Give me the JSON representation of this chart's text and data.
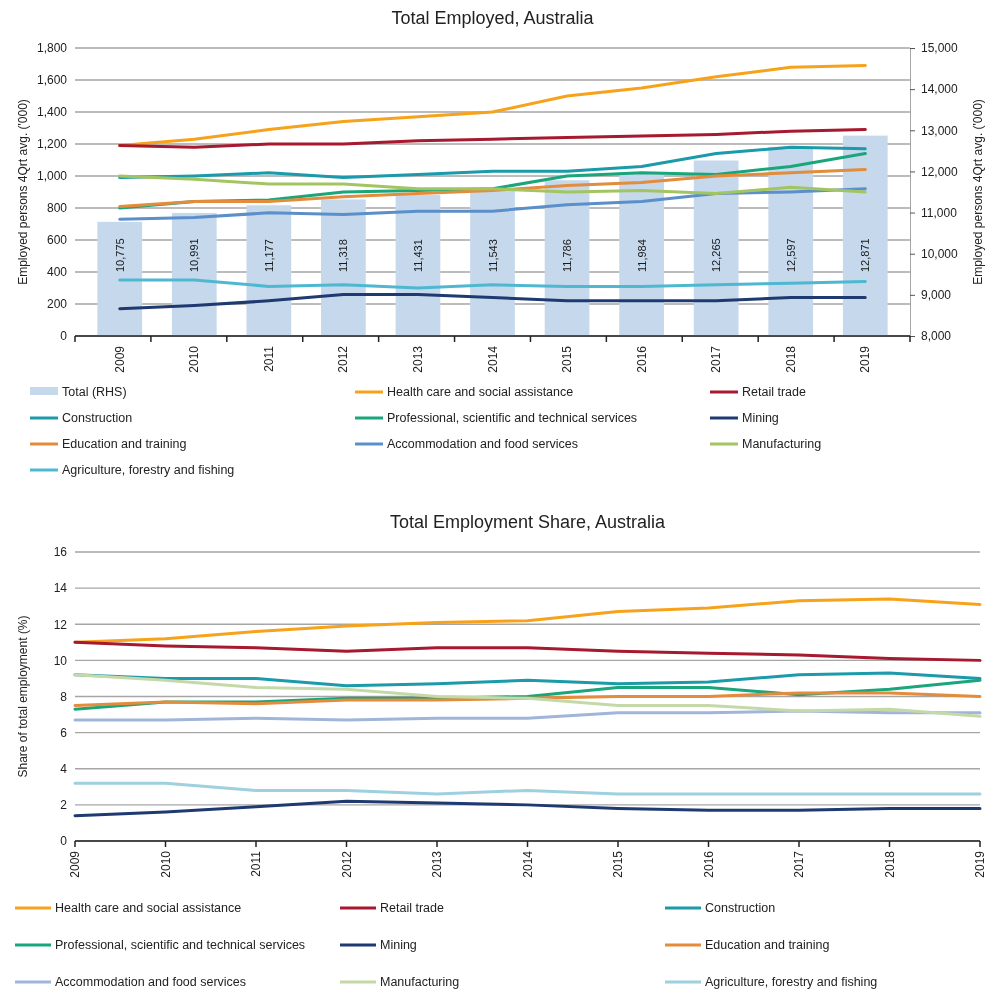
{
  "chart_data": [
    {
      "type": "line",
      "title": "Total Employed, Australia",
      "ylabel": "Employed persons 4Qrt avg. ('000)",
      "y2label": "Employed persons 4Qrt avg. ('000)",
      "categories": [
        "2009",
        "2010",
        "2011",
        "2012",
        "2013",
        "2014",
        "2015",
        "2016",
        "2017",
        "2018",
        "2019"
      ],
      "ylim": [
        0,
        1800
      ],
      "yticks": [
        0,
        200,
        400,
        600,
        800,
        {
          "value": 1000,
          "label": "1,000"
        },
        {
          "value": 1200,
          "label": "1,200"
        },
        {
          "value": 1400,
          "label": "1,400"
        },
        {
          "value": 1600,
          "label": "1,600"
        },
        {
          "value": 1800,
          "label": "1,800"
        }
      ],
      "y2lim": [
        8000,
        15000
      ],
      "y2ticks": [
        {
          "value": 8000,
          "label": "8,000"
        },
        {
          "value": 9000,
          "label": "9,000"
        },
        {
          "value": 10000,
          "label": "10,000"
        },
        {
          "value": 11000,
          "label": "11,000"
        },
        {
          "value": 12000,
          "label": "12,000"
        },
        {
          "value": 13000,
          "label": "13,000"
        },
        {
          "value": 14000,
          "label": "14,000"
        },
        {
          "value": 15000,
          "label": "15,000"
        }
      ],
      "grid": "y",
      "legend": "bottom",
      "marker": "none",
      "line_style": "solid",
      "series": [
        {
          "name": "Total (RHS)",
          "type": "bar",
          "axis": "y2",
          "color": "#c5d8ec",
          "values": [
            10775,
            10991,
            11177,
            11318,
            11431,
            11543,
            11786,
            11984,
            12265,
            12597,
            12871
          ],
          "value_labels": [
            "10,775",
            "10,991",
            "11,177",
            "11,318",
            "11,431",
            "11,543",
            "11,786",
            "11,984",
            "12,265",
            "12,597",
            "12,871"
          ]
        },
        {
          "name": "Health care and social assistance",
          "color": "#f7a21b",
          "values": [
            1190,
            1230,
            1290,
            1340,
            1370,
            1400,
            1500,
            1550,
            1620,
            1680,
            1690
          ]
        },
        {
          "name": "Retail trade",
          "color": "#a6192e",
          "values": [
            1190,
            1180,
            1200,
            1200,
            1220,
            1230,
            1240,
            1250,
            1260,
            1280,
            1290
          ]
        },
        {
          "name": "Construction",
          "color": "#1b9aaa",
          "values": [
            990,
            1000,
            1020,
            990,
            1010,
            1030,
            1030,
            1060,
            1140,
            1180,
            1170
          ]
        },
        {
          "name": "Professional, scientific and technical services",
          "color": "#1aa57a",
          "values": [
            800,
            840,
            850,
            900,
            910,
            920,
            1000,
            1020,
            1010,
            1060,
            1140
          ]
        },
        {
          "name": "Mining",
          "color": "#1f3a70",
          "values": [
            170,
            190,
            220,
            260,
            260,
            240,
            220,
            220,
            220,
            240,
            240
          ]
        },
        {
          "name": "Education and training",
          "color": "#e28c3c",
          "values": [
            810,
            840,
            840,
            870,
            890,
            910,
            940,
            960,
            1000,
            1020,
            1040
          ]
        },
        {
          "name": "Accommodation and food services",
          "color": "#5b8fc9",
          "values": [
            730,
            740,
            770,
            760,
            780,
            780,
            820,
            840,
            890,
            900,
            920
          ]
        },
        {
          "name": "Manufacturing",
          "color": "#a3c561",
          "values": [
            1000,
            980,
            950,
            950,
            920,
            920,
            900,
            910,
            890,
            930,
            900
          ]
        },
        {
          "name": "Agriculture, forestry and fishing",
          "color": "#4fb8d1",
          "values": [
            350,
            350,
            310,
            320,
            300,
            320,
            310,
            310,
            320,
            330,
            340
          ]
        }
      ]
    },
    {
      "type": "line",
      "title": "Total Employment Share, Australia",
      "ylabel": "Share of total employment (%)",
      "categories": [
        "2009",
        "2010",
        "2011",
        "2012",
        "2013",
        "2014",
        "2015",
        "2016",
        "2017",
        "2018",
        "2019"
      ],
      "ylim": [
        0,
        16
      ],
      "yticks": [
        0,
        2,
        4,
        6,
        8,
        10,
        12,
        14,
        16
      ],
      "grid": "y",
      "legend": "bottom",
      "marker": "none",
      "line_style": "solid",
      "series": [
        {
          "name": "Health care and social assistance",
          "color": "#f7a21b",
          "values": [
            11.0,
            11.2,
            11.6,
            11.9,
            12.1,
            12.2,
            12.7,
            12.9,
            13.3,
            13.4,
            13.1
          ]
        },
        {
          "name": "Retail trade",
          "color": "#a6192e",
          "values": [
            11.0,
            10.8,
            10.7,
            10.5,
            10.7,
            10.7,
            10.5,
            10.4,
            10.3,
            10.1,
            10.0
          ]
        },
        {
          "name": "Construction",
          "color": "#1b9aaa",
          "values": [
            9.2,
            9.0,
            9.0,
            8.6,
            8.7,
            8.9,
            8.7,
            8.8,
            9.2,
            9.3,
            9.0
          ]
        },
        {
          "name": "Professional, scientific and technical services",
          "color": "#1aa57a",
          "values": [
            7.3,
            7.7,
            7.7,
            7.9,
            7.9,
            8.0,
            8.5,
            8.5,
            8.1,
            8.4,
            8.9
          ]
        },
        {
          "name": "Mining",
          "color": "#1f3a70",
          "values": [
            1.4,
            1.6,
            1.9,
            2.2,
            2.1,
            2.0,
            1.8,
            1.7,
            1.7,
            1.8,
            1.8
          ]
        },
        {
          "name": "Education and training",
          "color": "#e28c3c",
          "values": [
            7.5,
            7.7,
            7.6,
            7.8,
            7.8,
            7.9,
            8.0,
            8.0,
            8.2,
            8.2,
            8.0
          ]
        },
        {
          "name": "Accommodation and food services",
          "color": "#9fb5d9",
          "values": [
            6.7,
            6.7,
            6.8,
            6.7,
            6.8,
            6.8,
            7.1,
            7.1,
            7.2,
            7.1,
            7.1
          ]
        },
        {
          "name": "Manufacturing",
          "color": "#c5d9a8",
          "values": [
            9.2,
            8.9,
            8.5,
            8.4,
            8.0,
            7.9,
            7.5,
            7.5,
            7.2,
            7.3,
            6.9
          ]
        },
        {
          "name": "Agriculture, forestry and fishing",
          "color": "#9ed0e0",
          "values": [
            3.2,
            3.2,
            2.8,
            2.8,
            2.6,
            2.8,
            2.6,
            2.6,
            2.6,
            2.6,
            2.6
          ]
        }
      ]
    }
  ]
}
